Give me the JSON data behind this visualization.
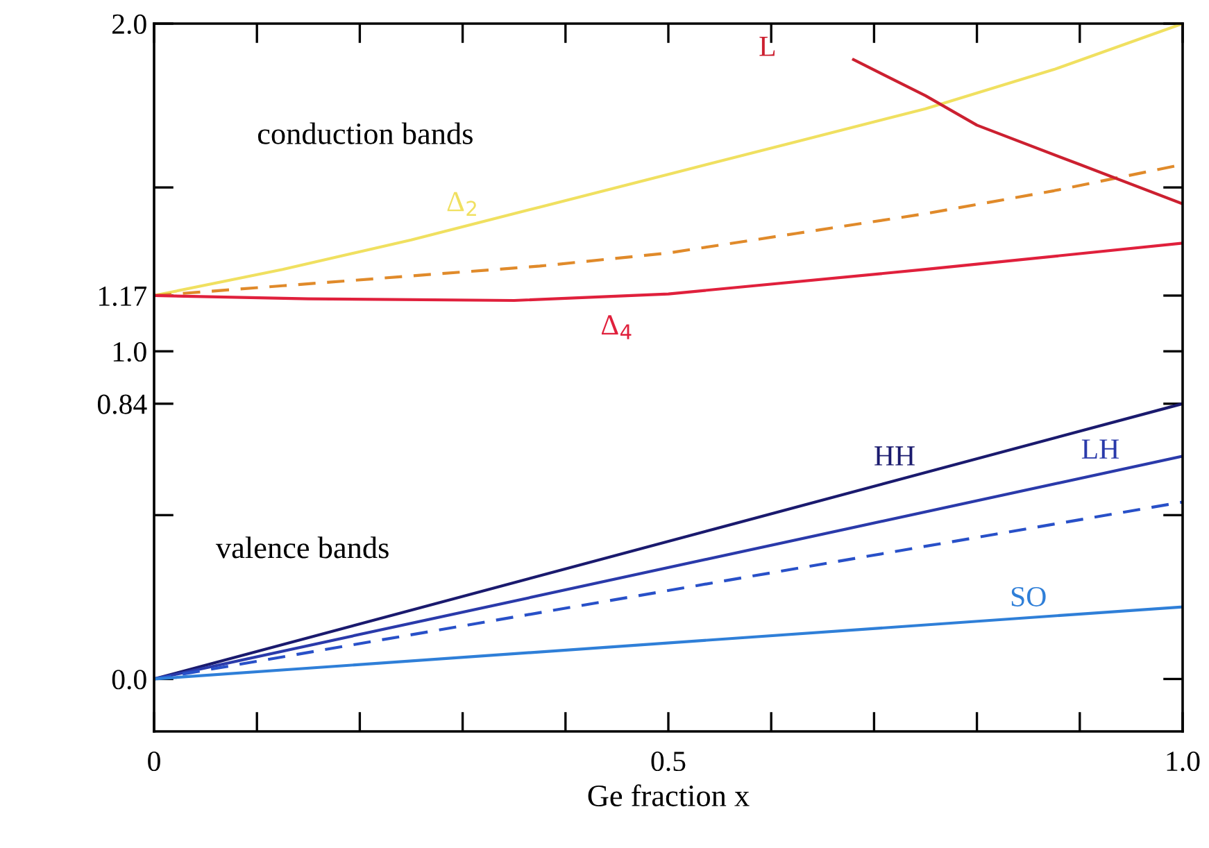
{
  "chart_data": {
    "type": "line",
    "xlabel": "Ge fraction x",
    "xlim": [
      0,
      1.0
    ],
    "ylim": [
      -0.16,
      2.0
    ],
    "xticks": [
      0,
      {
        "value": 0.1,
        "label": null
      },
      {
        "value": 0.2,
        "label": null
      },
      {
        "value": 0.3,
        "label": null
      },
      {
        "value": 0.4,
        "label": null
      },
      0.5,
      {
        "value": 0.6,
        "label": null
      },
      {
        "value": 0.7,
        "label": null
      },
      {
        "value": 0.8,
        "label": null
      },
      {
        "value": 0.9,
        "label": null
      },
      {
        "value": 1.0,
        "label": "1.0"
      }
    ],
    "yticks": [
      {
        "value": 0.0,
        "label": "0.0"
      },
      {
        "value": 0.5,
        "label": null
      },
      0.84,
      {
        "value": 1.0,
        "label": "1.0"
      },
      1.17,
      {
        "value": 1.5,
        "label": null
      },
      {
        "value": 2.0,
        "label": "2.0"
      }
    ],
    "grid": false,
    "legend": false,
    "annotations": [
      "conduction bands",
      "valence bands"
    ],
    "series": [
      {
        "name": "Δ$_{2}$",
        "color": "#f0e060",
        "x": [
          0,
          0.125,
          0.25,
          0.375,
          0.5,
          0.625,
          0.75,
          0.875,
          1.0
        ],
        "values": [
          1.17,
          1.25,
          1.34,
          1.44,
          1.54,
          1.64,
          1.74,
          1.86,
          2.0
        ]
      },
      {
        "color": "#e08a2a",
        "line_style": "dashed",
        "x": [
          0,
          0.125,
          0.25,
          0.375,
          0.5,
          0.625,
          0.75,
          0.875,
          1.0
        ],
        "values": [
          1.17,
          1.2,
          1.23,
          1.26,
          1.3,
          1.36,
          1.42,
          1.49,
          1.57
        ]
      },
      {
        "name": "Δ$_{4}$",
        "color": "#e0203c",
        "x": [
          0,
          0.15,
          0.35,
          0.5,
          0.75,
          1.0
        ],
        "values": [
          1.17,
          1.16,
          1.155,
          1.175,
          1.25,
          1.33
        ]
      },
      {
        "name": "L",
        "color": "#cc2030",
        "x": [
          0.68,
          0.75,
          0.8,
          0.9,
          1.0
        ],
        "values": [
          1.89,
          1.78,
          1.69,
          1.57,
          1.45
        ]
      },
      {
        "name": "HH",
        "color": "#1a1a6e",
        "x": [
          0,
          1.0
        ],
        "values": [
          0,
          0.84
        ]
      },
      {
        "name": "LH",
        "color": "#2a3aaa",
        "x": [
          0,
          1.0
        ],
        "values": [
          0,
          0.68
        ]
      },
      {
        "color": "#2850c8",
        "line_style": "dashed",
        "x": [
          0,
          1.0
        ],
        "values": [
          0,
          0.54
        ]
      },
      {
        "name": "SO",
        "color": "#2f7fd8",
        "x": [
          0,
          1.0
        ],
        "values": [
          0,
          0.22
        ]
      }
    ]
  }
}
